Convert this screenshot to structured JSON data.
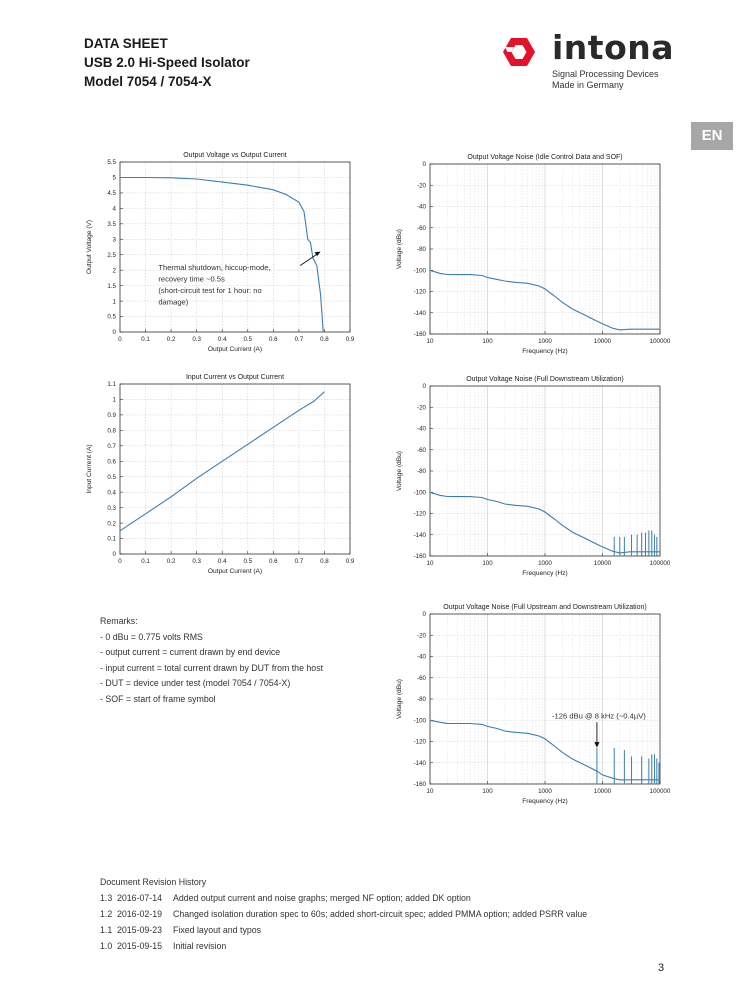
{
  "header": {
    "line1": "DATA SHEET",
    "line2": "USB 2.0 Hi-Speed Isolator",
    "line3": "Model 7054 / 7054-X"
  },
  "logo": {
    "wordmark": "intona",
    "tagline1": "Signal Processing Devices",
    "tagline2": "Made in Germany",
    "mark_color": "#e3122a"
  },
  "lang_badge": "EN",
  "line_color": "#3a7fad",
  "chart_data": [
    {
      "type": "line",
      "title": "Output Voltage vs Output Current",
      "xlabel": "Output Current (A)",
      "ylabel": "Output Voltage (V)",
      "xlim": [
        0,
        0.9
      ],
      "ylim": [
        0,
        5.5
      ],
      "xticks": [
        "0",
        "0.1",
        "0.2",
        "0.3",
        "0.4",
        "0.5",
        "0.6",
        "0.7",
        "0.8",
        "0.9"
      ],
      "yticks": [
        "0",
        "0.5",
        "1",
        "1.5",
        "2",
        "2.5",
        "3",
        "3.5",
        "4",
        "4.5",
        "5",
        "5.5"
      ],
      "grid": true,
      "x": [
        0,
        0.1,
        0.2,
        0.3,
        0.4,
        0.5,
        0.6,
        0.65,
        0.7,
        0.72,
        0.735,
        0.745,
        0.755,
        0.77,
        0.785,
        0.795
      ],
      "y": [
        5.0,
        5.0,
        4.99,
        4.95,
        4.85,
        4.75,
        4.6,
        4.45,
        4.2,
        3.9,
        3.0,
        2.9,
        2.4,
        2.15,
        1.2,
        0
      ],
      "annotation": {
        "lines": [
          "Thermal shutdown, hiccup-mode,",
          "recovery time ~0.5s",
          "(short-circuit test for 1 hour: no",
          "damage)"
        ],
        "point": [
          0.785,
          2.6
        ]
      }
    },
    {
      "type": "line",
      "title": "Output Voltage Noise (Idle Control Data and SOF)",
      "xlabel": "Frequency (Hz)",
      "ylabel": "Voltage (dBu)",
      "xscale": "log",
      "xlim": [
        10,
        100000
      ],
      "ylim": [
        -160,
        0
      ],
      "xticks": [
        "10",
        "100",
        "1000",
        "10000",
        "100000"
      ],
      "yticks": [
        "0",
        "-20",
        "-40",
        "-60",
        "-80",
        "-100",
        "-120",
        "-140",
        "-160"
      ],
      "grid": true,
      "x": [
        10,
        15,
        20,
        30,
        50,
        80,
        100,
        150,
        200,
        300,
        500,
        800,
        1000,
        1500,
        2000,
        3000,
        5000,
        8000,
        10000,
        15000,
        20000,
        30000,
        50000,
        100000
      ],
      "y": [
        -100,
        -102,
        -103,
        -104,
        -105,
        -106,
        -107,
        -108,
        -109,
        -111,
        -113,
        -116,
        -118,
        -124,
        -129,
        -136,
        -143,
        -149,
        -151,
        -154,
        -155,
        -155.5,
        -155.5,
        -155.5
      ],
      "spikes": []
    },
    {
      "type": "line",
      "title": "Input Current vs Output Current",
      "xlabel": "Output Current (A)",
      "ylabel": "Input Current (A)",
      "xlim": [
        0,
        0.9
      ],
      "ylim": [
        0,
        1.1
      ],
      "xticks": [
        "0",
        "0.1",
        "0.2",
        "0.3",
        "0.4",
        "0.5",
        "0.6",
        "0.7",
        "0.8",
        "0.9"
      ],
      "yticks": [
        "0",
        "0.1",
        "0.2",
        "0.3",
        "0.4",
        "0.5",
        "0.6",
        "0.7",
        "0.8",
        "0.9",
        "1",
        "1.1"
      ],
      "grid": true,
      "x": [
        0,
        0.1,
        0.2,
        0.3,
        0.4,
        0.5,
        0.6,
        0.7,
        0.72,
        0.74,
        0.76,
        0.78,
        0.8
      ],
      "y": [
        0.15,
        0.26,
        0.37,
        0.49,
        0.6,
        0.71,
        0.82,
        0.93,
        0.95,
        0.97,
        0.99,
        1.02,
        1.05
      ],
      "annotation": null
    },
    {
      "type": "line",
      "title": "Output Voltage Noise (Full Downstream Utilization)",
      "xlabel": "Frequency (Hz)",
      "ylabel": "Voltage (dBu)",
      "xscale": "log",
      "xlim": [
        10,
        100000
      ],
      "ylim": [
        -160,
        0
      ],
      "xticks": [
        "10",
        "100",
        "1000",
        "10000",
        "100000"
      ],
      "yticks": [
        "0",
        "-20",
        "-40",
        "-60",
        "-80",
        "-100",
        "-120",
        "-140",
        "-160"
      ],
      "grid": true,
      "x": [
        10,
        15,
        20,
        30,
        50,
        80,
        100,
        150,
        200,
        300,
        500,
        800,
        1000,
        1500,
        2000,
        3000,
        5000,
        8000,
        10000,
        15000,
        20000,
        30000,
        50000,
        100000
      ],
      "y": [
        -100,
        -102,
        -103,
        -104,
        -105,
        -106,
        -107,
        -108,
        -110,
        -112,
        -114,
        -117,
        -119,
        -125,
        -130,
        -137,
        -144,
        -150,
        -152,
        -155,
        -156,
        -156,
        -156,
        -156
      ],
      "spikes": [
        [
          16000,
          -142
        ],
        [
          20000,
          -142
        ],
        [
          24000,
          -142
        ],
        [
          32000,
          -140
        ],
        [
          40000,
          -140
        ],
        [
          48000,
          -138
        ],
        [
          56000,
          -138
        ],
        [
          64000,
          -136
        ],
        [
          72000,
          -136
        ],
        [
          80000,
          -140
        ],
        [
          88000,
          -142
        ]
      ]
    },
    {
      "type": "line",
      "title": "Output Voltage Noise (Full Upstream and Downstream Utilization)",
      "xlabel": "Frequency (Hz)",
      "ylabel": "Voltage (dBu)",
      "xscale": "log",
      "xlim": [
        10,
        100000
      ],
      "ylim": [
        -160,
        0
      ],
      "xticks": [
        "10",
        "100",
        "1000",
        "10000",
        "100000"
      ],
      "yticks": [
        "0",
        "-20",
        "-40",
        "-60",
        "-80",
        "-100",
        "-120",
        "-140",
        "-160"
      ],
      "grid": true,
      "x": [
        10,
        15,
        20,
        30,
        50,
        80,
        100,
        150,
        200,
        300,
        500,
        800,
        1000,
        1500,
        2000,
        3000,
        5000,
        8000,
        10000,
        15000,
        20000,
        30000,
        50000,
        100000
      ],
      "y": [
        -100,
        -101,
        -102,
        -103,
        -104,
        -105,
        -106,
        -107,
        -109,
        -111,
        -113,
        -116,
        -118,
        -124,
        -129,
        -136,
        -143,
        -149,
        -152,
        -154,
        -155,
        -156,
        -156,
        -156
      ],
      "spikes": [
        [
          8000,
          -126
        ],
        [
          16000,
          -126
        ],
        [
          24000,
          -128
        ],
        [
          32000,
          -134
        ],
        [
          48000,
          -134
        ],
        [
          64000,
          -136
        ],
        [
          72000,
          -132
        ],
        [
          80000,
          -132
        ],
        [
          88000,
          -136
        ],
        [
          96000,
          -140
        ]
      ],
      "annotation": {
        "lines": [
          "-126 dBu @ 8 kHz (~0.4µV)"
        ],
        "point": [
          8000,
          -122
        ]
      }
    }
  ],
  "remarks": {
    "title": "Remarks:",
    "items": [
      "- 0 dBu = 0.775 volts RMS",
      "- output current = current drawn by end device",
      "- input current = total current drawn by DUT from the host",
      "- DUT = device under test (model 7054 / 7054-X)",
      "- SOF = start of frame symbol"
    ]
  },
  "revision_history": {
    "title": "Document Revision History",
    "entries": [
      {
        "version": "1.3",
        "date": "2016-07-14",
        "text": "Added output current and noise graphs; merged NF option; added DK option"
      },
      {
        "version": "1.2",
        "date": "2016-02-19",
        "text": "Changed isolation duration spec to 60s; added short-circuit spec; added PMMA option; added PSRR value"
      },
      {
        "version": "1.1",
        "date": "2015-09-23",
        "text": "Fixed layout and typos"
      },
      {
        "version": "1.0",
        "date": "2015-09-15",
        "text": "Initial revision"
      }
    ]
  },
  "page_number": "3"
}
